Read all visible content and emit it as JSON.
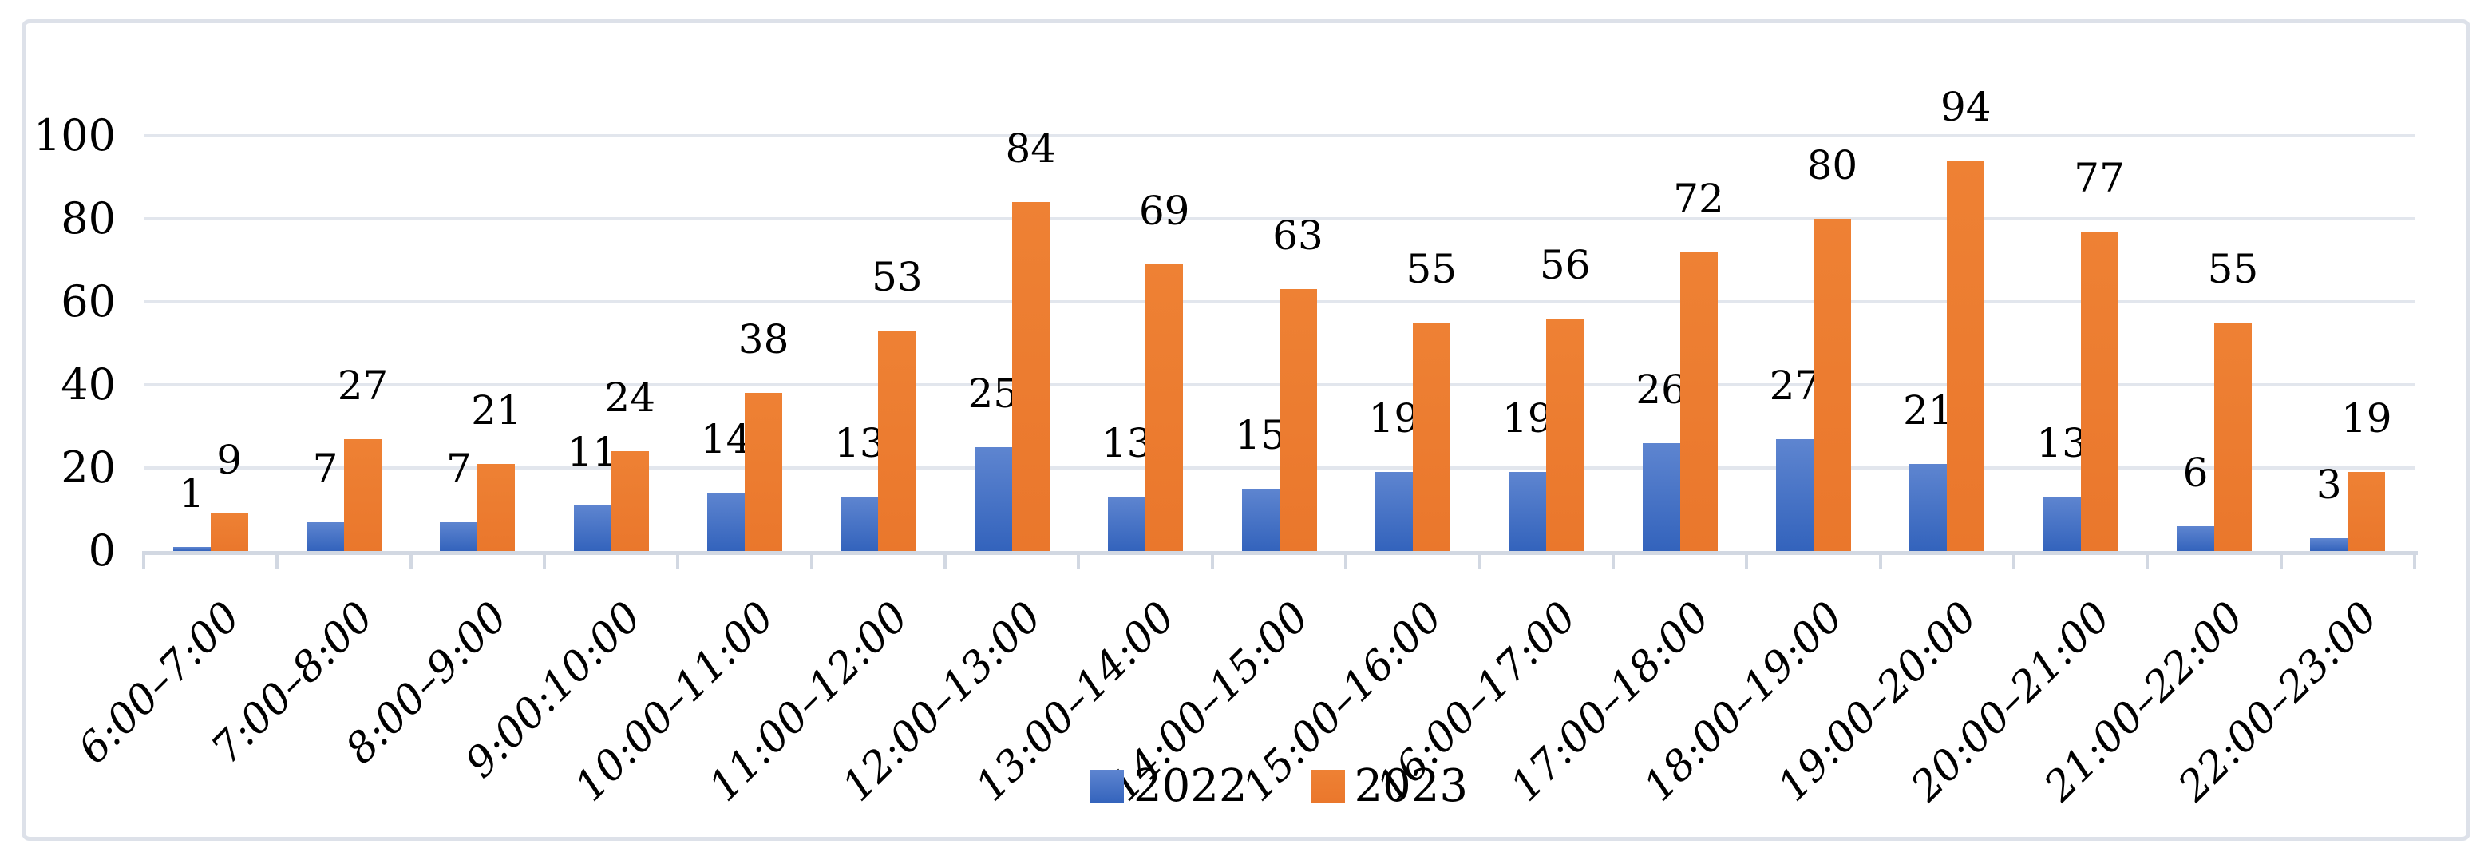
{
  "chart_data": {
    "type": "bar",
    "title": "",
    "xlabel": "",
    "ylabel": "",
    "categories": [
      "6:00–7:00",
      "7:00–8:00",
      "8:00–9:00",
      "9:00:10:00",
      "10:00–11:00",
      "11:00–12:00",
      "12:00–13:00",
      "13:00–14:00",
      "14:00–15:00",
      "15:00–16:00",
      "16:00–17:00",
      "17:00–18:00",
      "18:00–19:00",
      "19:00–20:00",
      "20:00–21:00",
      "21:00–22:00",
      "22:00–23:00"
    ],
    "series": [
      {
        "name": "2022",
        "color": "#4472C4",
        "color_top": "#5e85d0",
        "color_bottom": "#3363bc",
        "values": [
          1,
          7,
          7,
          11,
          14,
          13,
          25,
          13,
          15,
          19,
          19,
          26,
          27,
          21,
          13,
          6,
          3
        ]
      },
      {
        "name": "2023",
        "color": "#ED7D31",
        "values": [
          9,
          27,
          21,
          24,
          38,
          53,
          84,
          69,
          63,
          55,
          56,
          72,
          80,
          94,
          77,
          55,
          19
        ]
      }
    ],
    "ylim": [
      0,
      100
    ],
    "yticks": [
      0,
      20,
      40,
      60,
      80,
      100
    ],
    "grid": true,
    "data_labels": true,
    "legend_position": "bottom",
    "x_label_rotation_deg": -45
  },
  "colors": {
    "grid": "#e2e6ed",
    "axis": "#d2d8e2",
    "frame_border": "#dde1e9",
    "text": "#000000",
    "background": "#ffffff"
  }
}
